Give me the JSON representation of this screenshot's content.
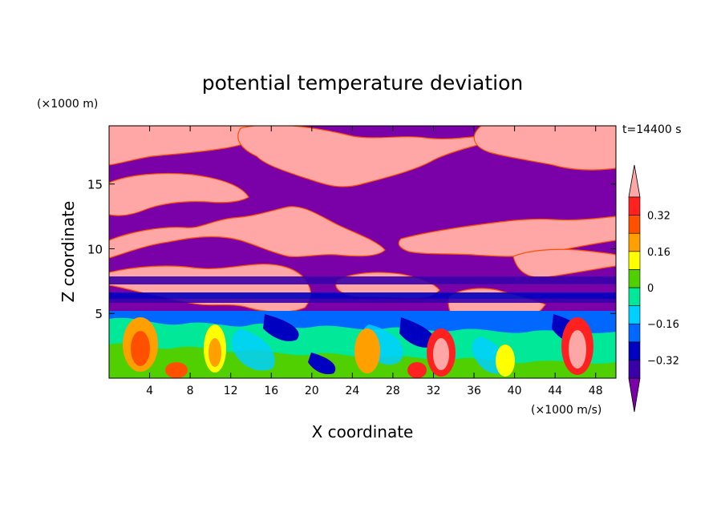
{
  "chart_data": {
    "type": "heatmap",
    "title": "potential temperature deviation",
    "xlabel": "X coordinate",
    "ylabel": "Z coordinate",
    "x_units": "(×1000 m/s)",
    "y_units": "(×1000 m)",
    "time_label": "t=14400 s",
    "xlim": [
      0,
      50
    ],
    "ylim": [
      0,
      19.5
    ],
    "x_ticks": [
      4,
      8,
      12,
      16,
      20,
      24,
      28,
      32,
      36,
      40,
      44,
      48
    ],
    "y_ticks": [
      5,
      10,
      15
    ],
    "colorbar": {
      "levels": [
        -0.4,
        -0.32,
        -0.24,
        -0.16,
        -0.08,
        0,
        0.08,
        0.16,
        0.24,
        0.32,
        0.4
      ],
      "labeled_levels": [
        0.32,
        0.16,
        0,
        -0.16,
        -0.32
      ],
      "colors": [
        "#7a00a8",
        "#3a00a8",
        "#0000c0",
        "#0068ff",
        "#00d0ff",
        "#00e898",
        "#50d000",
        "#ffff00",
        "#ffa000",
        "#ff5000",
        "#ff2020",
        "#ffa6a6"
      ],
      "extend": "both"
    },
    "description_regions": {
      "lower_layer_top": 6.5,
      "cloud_layer_band": [
        6.5,
        19.5
      ]
    }
  },
  "colors": {
    "purple": "#7a00a8",
    "pink": "#ffa6a6",
    "navy": "#0000c0",
    "blue": "#0068ff",
    "cyan": "#00d0ff",
    "teal": "#00e898",
    "green": "#50d000",
    "yellow": "#ffff00",
    "orange": "#ffa000",
    "red": "#ff2020"
  }
}
